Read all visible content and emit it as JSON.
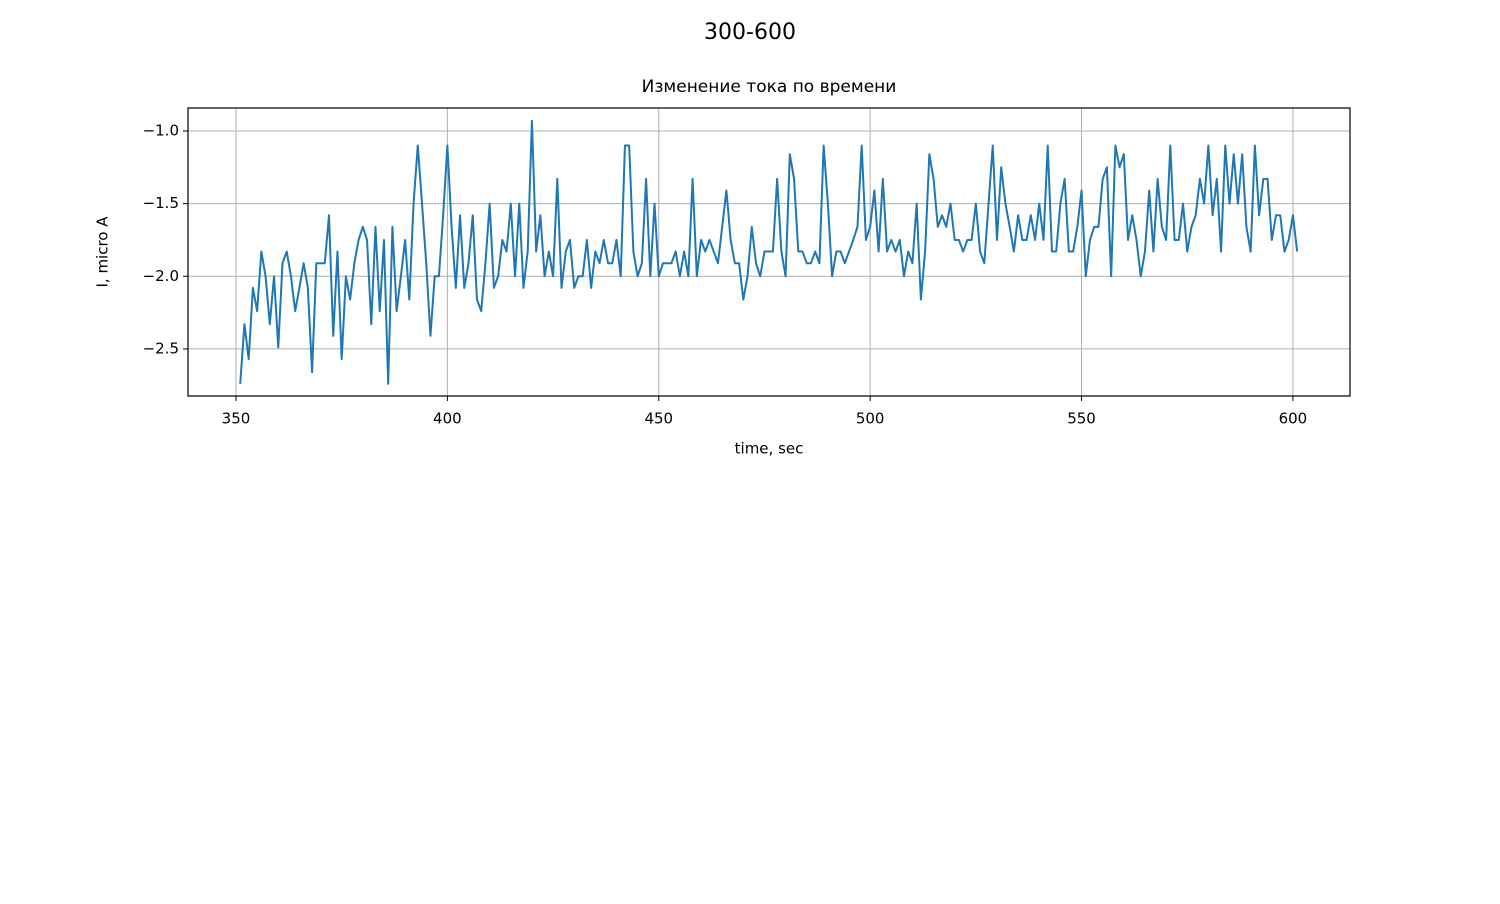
{
  "chart_data": {
    "type": "line",
    "suptitle": "300-600",
    "title": "Изменение тока по времени",
    "xlabel": "time, sec",
    "ylabel": "I, micro A",
    "grid": true,
    "xlim": [
      338.65,
      613.5
    ],
    "ylim": [
      -2.824,
      -0.842
    ],
    "xticks": [
      350,
      400,
      450,
      500,
      550,
      600
    ],
    "yticks": [
      {
        "value": -1.0,
        "label": "−1.0"
      },
      {
        "value": -1.5,
        "label": "−1.5"
      },
      {
        "value": -2.0,
        "label": "−2.0"
      },
      {
        "value": -2.5,
        "label": "−2.5"
      }
    ],
    "x": [
      351,
      352,
      353,
      354,
      355,
      356,
      357,
      358,
      359,
      360,
      361,
      362,
      363,
      364,
      365,
      366,
      367,
      368,
      369,
      370,
      371,
      372,
      373,
      374,
      375,
      376,
      377,
      378,
      379,
      380,
      381,
      382,
      383,
      384,
      385,
      386,
      387,
      388,
      389,
      390,
      391,
      392,
      393,
      394,
      395,
      396,
      397,
      398,
      399,
      400,
      401,
      402,
      403,
      404,
      405,
      406,
      407,
      408,
      409,
      410,
      411,
      412,
      413,
      414,
      415,
      416,
      417,
      418,
      419,
      420,
      421,
      422,
      423,
      424,
      425,
      426,
      427,
      428,
      429,
      430,
      431,
      432,
      433,
      434,
      435,
      436,
      437,
      438,
      439,
      440,
      441,
      442,
      443,
      444,
      445,
      446,
      447,
      448,
      449,
      450,
      451,
      452,
      453,
      454,
      455,
      456,
      457,
      458,
      459,
      460,
      461,
      462,
      463,
      464,
      465,
      466,
      467,
      468,
      469,
      470,
      471,
      472,
      473,
      474,
      475,
      476,
      477,
      478,
      479,
      480,
      481,
      482,
      483,
      484,
      485,
      486,
      487,
      488,
      489,
      490,
      491,
      492,
      493,
      494,
      495,
      496,
      497,
      498,
      499,
      500,
      501,
      502,
      503,
      504,
      505,
      506,
      507,
      508,
      509,
      510,
      511,
      512,
      513,
      514,
      515,
      516,
      517,
      518,
      519,
      520,
      521,
      522,
      523,
      524,
      525,
      526,
      527,
      528,
      529,
      530,
      531,
      532,
      533,
      534,
      535,
      536,
      537,
      538,
      539,
      540,
      541,
      542,
      543,
      544,
      545,
      546,
      547,
      548,
      549,
      550,
      551,
      552,
      553,
      554,
      555,
      556,
      557,
      558,
      559,
      560,
      561,
      562,
      563,
      564,
      565,
      566,
      567,
      568,
      569,
      570,
      571,
      572,
      573,
      574,
      575,
      576,
      577,
      578,
      579,
      580,
      581,
      582,
      583,
      584,
      585,
      586,
      587,
      588,
      589,
      590,
      591,
      592,
      593,
      594,
      595,
      596,
      597,
      598,
      599,
      600,
      601
    ],
    "series": [
      {
        "name": "I",
        "color": "#1f77b4",
        "values": [
          -2.74,
          -2.33,
          -2.57,
          -2.08,
          -2.24,
          -1.83,
          -2.0,
          -2.33,
          -2.0,
          -2.49,
          -1.91,
          -1.83,
          -2.0,
          -2.24,
          -2.08,
          -1.91,
          -2.08,
          -2.66,
          -1.91,
          -1.91,
          -1.91,
          -1.58,
          -2.41,
          -1.83,
          -2.57,
          -2.0,
          -2.16,
          -1.91,
          -1.75,
          -1.66,
          -1.75,
          -2.33,
          -1.66,
          -2.24,
          -1.75,
          -2.74,
          -1.66,
          -2.24,
          -2.0,
          -1.75,
          -2.16,
          -1.5,
          -1.1,
          -1.5,
          -1.91,
          -2.41,
          -2.0,
          -2.0,
          -1.58,
          -1.1,
          -1.66,
          -2.08,
          -1.58,
          -2.08,
          -1.91,
          -1.58,
          -2.16,
          -2.24,
          -1.91,
          -1.5,
          -2.08,
          -2.0,
          -1.75,
          -1.83,
          -1.5,
          -2.0,
          -1.5,
          -2.08,
          -1.83,
          -0.93,
          -1.83,
          -1.58,
          -2.0,
          -1.83,
          -2.0,
          -1.33,
          -2.08,
          -1.83,
          -1.75,
          -2.08,
          -2.0,
          -2.0,
          -1.75,
          -2.08,
          -1.83,
          -1.91,
          -1.75,
          -1.91,
          -1.91,
          -1.75,
          -2.0,
          -1.1,
          -1.1,
          -1.83,
          -2.0,
          -1.91,
          -1.33,
          -2.0,
          -1.5,
          -2.0,
          -1.91,
          -1.91,
          -1.91,
          -1.83,
          -2.0,
          -1.83,
          -2.0,
          -1.33,
          -2.0,
          -1.75,
          -1.83,
          -1.75,
          -1.83,
          -1.91,
          -1.66,
          -1.41,
          -1.75,
          -1.91,
          -1.91,
          -2.16,
          -2.0,
          -1.66,
          -1.91,
          -2.0,
          -1.83,
          -1.83,
          -1.83,
          -1.33,
          -1.83,
          -2.0,
          -1.16,
          -1.33,
          -1.83,
          -1.83,
          -1.91,
          -1.91,
          -1.83,
          -1.91,
          -1.1,
          -1.5,
          -2.0,
          -1.83,
          -1.83,
          -1.91,
          -1.83,
          -1.75,
          -1.66,
          -1.1,
          -1.75,
          -1.66,
          -1.41,
          -1.83,
          -1.33,
          -1.83,
          -1.75,
          -1.83,
          -1.75,
          -2.0,
          -1.83,
          -1.91,
          -1.5,
          -2.16,
          -1.83,
          -1.16,
          -1.33,
          -1.66,
          -1.58,
          -1.66,
          -1.5,
          -1.75,
          -1.75,
          -1.83,
          -1.75,
          -1.75,
          -1.5,
          -1.83,
          -1.91,
          -1.5,
          -1.1,
          -1.75,
          -1.25,
          -1.5,
          -1.66,
          -1.83,
          -1.58,
          -1.75,
          -1.75,
          -1.58,
          -1.75,
          -1.5,
          -1.75,
          -1.1,
          -1.83,
          -1.83,
          -1.5,
          -1.33,
          -1.83,
          -1.83,
          -1.66,
          -1.41,
          -2.0,
          -1.75,
          -1.66,
          -1.66,
          -1.33,
          -1.25,
          -2.0,
          -1.1,
          -1.25,
          -1.16,
          -1.75,
          -1.58,
          -1.75,
          -2.0,
          -1.83,
          -1.41,
          -1.83,
          -1.33,
          -1.66,
          -1.75,
          -1.1,
          -1.75,
          -1.75,
          -1.5,
          -1.83,
          -1.66,
          -1.58,
          -1.33,
          -1.5,
          -1.1,
          -1.58,
          -1.33,
          -1.83,
          -1.1,
          -1.5,
          -1.16,
          -1.5,
          -1.16,
          -1.66,
          -1.83,
          -1.1,
          -1.58,
          -1.33,
          -1.33,
          -1.75,
          -1.58,
          -1.58,
          -1.83,
          -1.75,
          -1.58,
          -1.83
        ]
      }
    ]
  }
}
